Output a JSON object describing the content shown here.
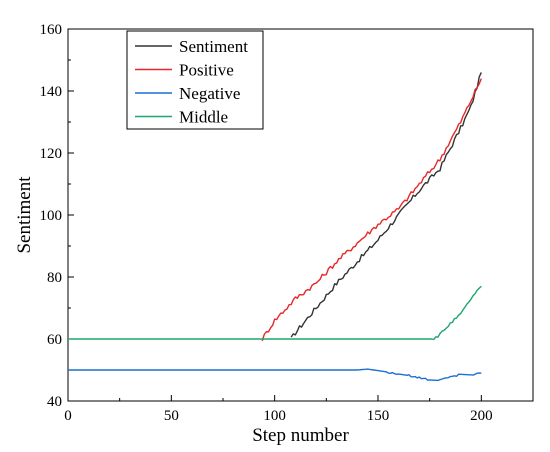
{
  "chart_data": {
    "type": "line",
    "xlabel": "Step number",
    "ylabel": "Sentiment",
    "xlim": [
      0,
      225
    ],
    "ylim": [
      40,
      160
    ],
    "x_ticks": [
      0,
      50,
      100,
      150,
      200
    ],
    "x_tick_labels": [
      "0",
      "50",
      "100",
      "150",
      "200"
    ],
    "y_ticks": [
      40,
      60,
      80,
      100,
      120,
      140,
      160
    ],
    "y_tick_labels": [
      "40",
      "60",
      "80",
      "100",
      "120",
      "140",
      "160"
    ],
    "grid": false,
    "legend_position": "top-left",
    "series": [
      {
        "name": "Sentiment",
        "color": "#333333",
        "x": [
          0,
          108,
          110,
          120,
          130,
          140,
          150,
          160,
          170,
          180,
          190,
          195,
          200
        ],
        "y": [
          null,
          60,
          62,
          70,
          78,
          85,
          92,
          100,
          108,
          115,
          128,
          135,
          146
        ]
      },
      {
        "name": "Positive",
        "color": "#e8272a",
        "x": [
          94,
          100,
          110,
          120,
          130,
          140,
          150,
          160,
          170,
          180,
          190,
          200
        ],
        "y": [
          60,
          66,
          73,
          78,
          85,
          91,
          97,
          102,
          110,
          118,
          130,
          144
        ]
      },
      {
        "name": "Negative",
        "color": "#1f6fd1",
        "x": [
          0,
          50,
          100,
          140,
          145,
          150,
          155,
          160,
          165,
          170,
          175,
          180,
          185,
          190,
          195,
          200
        ],
        "y": [
          50,
          50,
          50,
          50,
          50.3,
          49.8,
          49.3,
          48.7,
          48.2,
          47.6,
          46.8,
          46.6,
          47.8,
          48.6,
          48.4,
          49
        ]
      },
      {
        "name": "Middle",
        "color": "#1fa56d",
        "x": [
          0,
          50,
          100,
          150,
          177,
          180,
          185,
          190,
          195,
          200
        ],
        "y": [
          60,
          60,
          60,
          60,
          60,
          61.5,
          65,
          68,
          73,
          77
        ]
      }
    ]
  }
}
